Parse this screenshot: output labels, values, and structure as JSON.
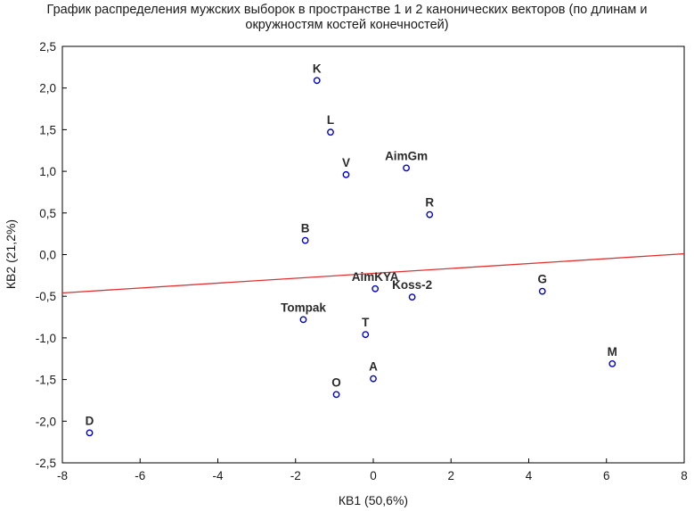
{
  "chart_data": {
    "type": "scatter",
    "title_line1": "График распределения мужских выборок в пространстве 1 и 2 канонических векторов (по длинам и",
    "title_line2": "окружностям костей конечностей)",
    "xlabel": "КВ1 (50,6%)",
    "ylabel": "КВ2 (21,2%)",
    "xlim": [
      -8,
      8
    ],
    "ylim": [
      -2.5,
      2.5
    ],
    "x_ticks": [
      "-8",
      "-6",
      "-4",
      "-2",
      "0",
      "2",
      "4",
      "6",
      "8"
    ],
    "y_ticks": [
      "2,5",
      "2,0",
      "1,5",
      "1,0",
      "0,5",
      "0,0",
      "-0,5",
      "-1,0",
      "-1,5",
      "-2,0",
      "-2,5"
    ],
    "grid": false,
    "marker_color": "#0000cc",
    "line_color": "#e03030",
    "regression_line": {
      "x": [
        -8,
        8
      ],
      "y": [
        -0.46,
        0.01
      ]
    },
    "points": [
      {
        "label": "K",
        "x": -1.45,
        "y": 2.09
      },
      {
        "label": "L",
        "x": -1.1,
        "y": 1.47
      },
      {
        "label": "V",
        "x": -0.7,
        "y": 0.96
      },
      {
        "label": "AimGm",
        "x": 0.85,
        "y": 1.04
      },
      {
        "label": "R",
        "x": 1.45,
        "y": 0.48
      },
      {
        "label": "B",
        "x": -1.75,
        "y": 0.17
      },
      {
        "label": "AimKYA",
        "x": 0.05,
        "y": -0.41
      },
      {
        "label": "Koss-2",
        "x": 1.0,
        "y": -0.51
      },
      {
        "label": "G",
        "x": 4.35,
        "y": -0.44
      },
      {
        "label": "Tompak",
        "x": -1.8,
        "y": -0.78
      },
      {
        "label": "T",
        "x": -0.2,
        "y": -0.96
      },
      {
        "label": "M",
        "x": 6.15,
        "y": -1.31
      },
      {
        "label": "A",
        "x": 0.0,
        "y": -1.49
      },
      {
        "label": "O",
        "x": -0.95,
        "y": -1.68
      },
      {
        "label": "D",
        "x": -7.3,
        "y": -2.14
      }
    ]
  }
}
